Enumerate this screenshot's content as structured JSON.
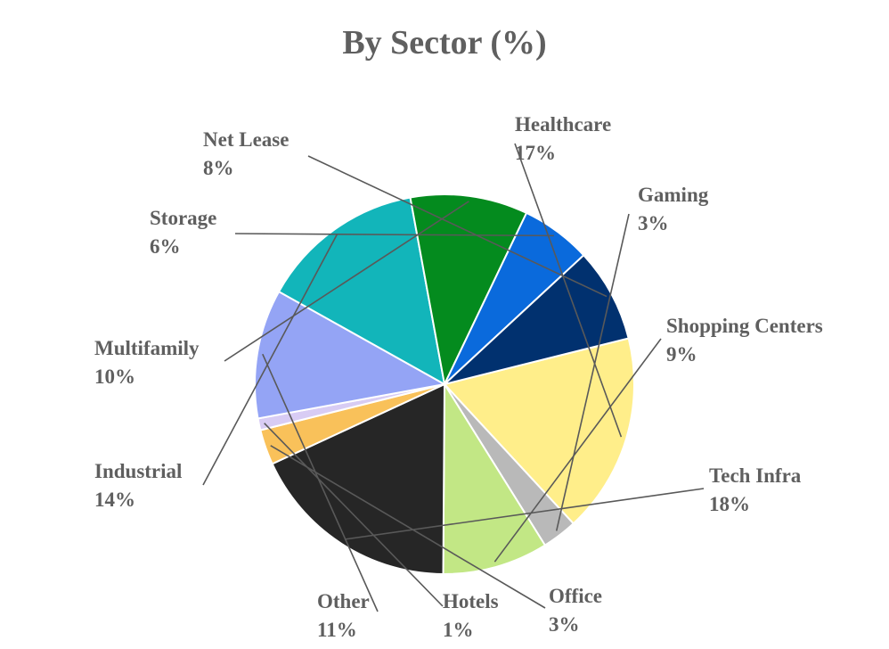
{
  "chart_data": {
    "type": "pie",
    "title": "By Sector (%)",
    "slices": [
      {
        "name": "Healthcare",
        "value": 17,
        "label": "17%",
        "color": "#FFEE8A"
      },
      {
        "name": "Gaming",
        "value": 3,
        "label": "3%",
        "color": "#B9B9B9"
      },
      {
        "name": "Shopping Centers",
        "value": 9,
        "label": "9%",
        "color": "#C2E785"
      },
      {
        "name": "Tech Infra",
        "value": 18,
        "label": "18%",
        "color": "#262626"
      },
      {
        "name": "Office",
        "value": 3,
        "label": "3%",
        "color": "#F9C15A"
      },
      {
        "name": "Hotels",
        "value": 1,
        "label": "1%",
        "color": "#D8CCF4"
      },
      {
        "name": "Other",
        "value": 11,
        "label": "11%",
        "color": "#94A4F5"
      },
      {
        "name": "Industrial",
        "value": 14,
        "label": "14%",
        "color": "#12B5BA"
      },
      {
        "name": "Multifamily",
        "value": 10,
        "label": "10%",
        "color": "#048B1E"
      },
      {
        "name": "Storage",
        "value": 6,
        "label": "6%",
        "color": "#0A6ADC"
      },
      {
        "name": "Net Lease",
        "value": 8,
        "label": "8%",
        "color": "#01316F"
      }
    ],
    "start_angle_deg": -14,
    "direction": "clockwise",
    "legend": "none",
    "data_labels": "outside-with-leader-lines"
  }
}
